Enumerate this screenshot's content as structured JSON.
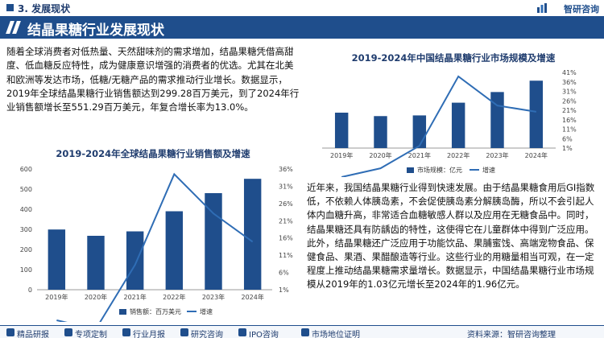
{
  "header": {
    "section_title": "3. 发展现状",
    "brand_name": "智研咨询",
    "page_title": "结晶果糖行业发展现状"
  },
  "text": {
    "paragraph1": "随着全球消费者对低热量、天然甜味剂的需求增加，结晶果糖凭借高甜度、低血糖反应特性，成为健康意识增强的消费者的优选。尤其在北美和欧洲等发达市场，低糖/无糖产品的需求推动行业增长。数据显示，2019年全球结晶果糖行业销售额达到299.28百万美元，到了2024年行业销售额增长至551.29百万美元，年复合增长率为13.0%。",
    "paragraph2": "近年来，我国结晶果糖行业得到快速发展。由于结晶果糖食用后GI指数低，不依赖人体胰岛素，不会促使胰岛素分解胰岛酶，所以不会引起人体内血糖升高，非常适合血糖敏感人群以及应用在无糖食品中。同时，结晶果糖还具有防龋齿的特性，这使得它在儿童群体中得到广泛应用。此外，结晶果糖还广泛应用于功能饮品、果脯蜜饯、高端宠物食品、保健食品、果酒、果醋酿造等行业。这些行业的用糖量相当可观，在一定程度上推动结晶果糖需求量增长。数据显示，中国结晶果糖行业市场规模从2019年的1.03亿元增长至2024年的1.96亿元。"
  },
  "footer": {
    "items": [
      "精品研报",
      "专项定制",
      "行业月报",
      "研究咨询",
      "IPO咨询",
      "市场地位证明",
      "资料来源：智研咨询整理"
    ]
  },
  "colors": {
    "bar": "#1f4e8c",
    "line": "#2f6db5",
    "title": "#1f3c6e"
  },
  "chart_data": [
    {
      "type": "bar",
      "title": "2019-2024年中国结晶果糖行业市场规模及增速",
      "categories": [
        "2019年",
        "2020年",
        "2021年",
        "2022年",
        "2023年",
        "2024年"
      ],
      "series": [
        {
          "name": "市场规模：亿元",
          "type": "bar",
          "values": [
            1.03,
            0.93,
            0.95,
            1.32,
            1.63,
            1.96
          ]
        },
        {
          "name": "增速",
          "type": "line",
          "axis": "right",
          "values": [
            null,
            -9.7,
            2.2,
            38.9,
            23.5,
            20.2
          ]
        }
      ],
      "y_left_lim": [
        0,
        2.2
      ],
      "y_right_ticks": [
        "1%",
        "6%",
        "11%",
        "16%",
        "21%",
        "26%",
        "31%",
        "36%",
        "41%"
      ],
      "y_right_lim": [
        1,
        41
      ],
      "legend_position": "bottom",
      "grid": false
    },
    {
      "type": "bar",
      "title": "2019-2024年全球结晶果糖行业销售额及增速",
      "categories": [
        "2019年",
        "2020年",
        "2021年",
        "2022年",
        "2023年",
        "2024年"
      ],
      "series": [
        {
          "name": "销售额：百万美元",
          "type": "bar",
          "values": [
            299.28,
            268,
            290,
            390,
            480,
            551.29
          ]
        },
        {
          "name": "增速",
          "type": "line",
          "axis": "right",
          "values": [
            null,
            -10.4,
            8.2,
            34.5,
            23.1,
            14.9
          ]
        }
      ],
      "y_left_ticks": [
        "0",
        "100",
        "200",
        "300",
        "400",
        "500",
        "600"
      ],
      "y_left_lim": [
        0,
        600
      ],
      "y_right_ticks": [
        "1%",
        "6%",
        "11%",
        "16%",
        "21%",
        "26%",
        "31%",
        "36%"
      ],
      "y_right_lim": [
        1,
        36
      ],
      "legend_position": "bottom",
      "grid": false
    }
  ]
}
